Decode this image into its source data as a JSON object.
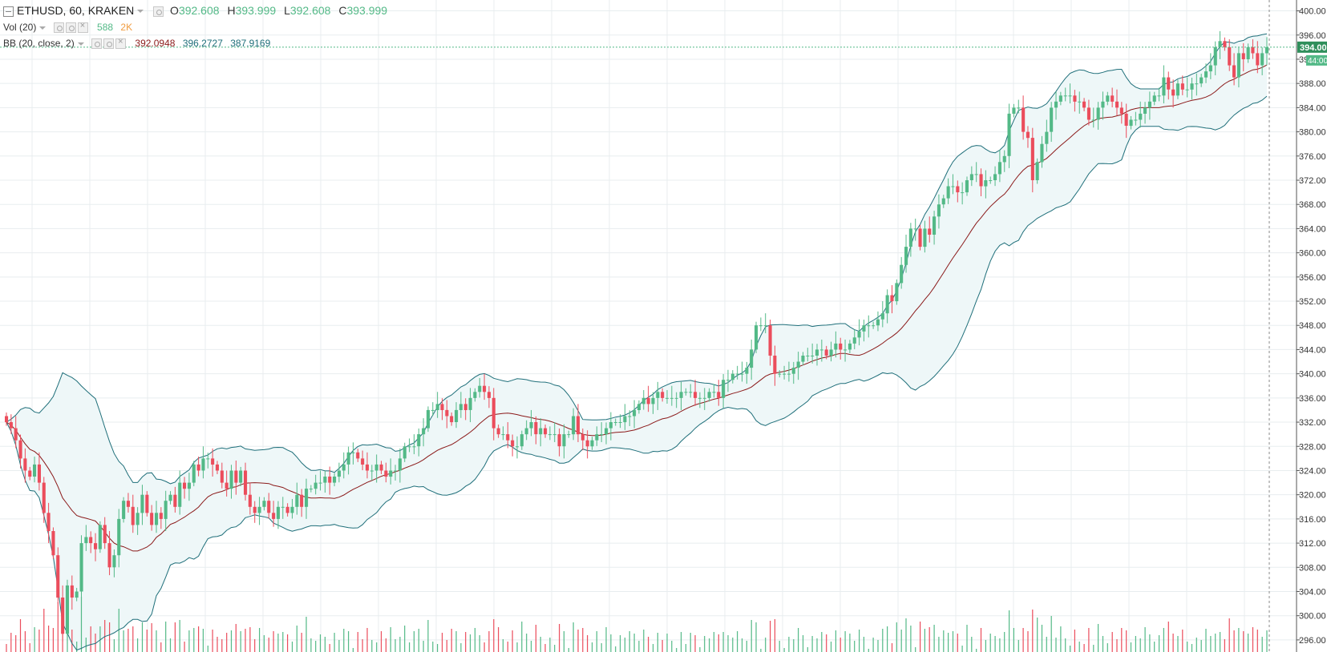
{
  "header": {
    "symbol": "ETHUSD, 60, KRAKEN",
    "open_label": "O",
    "open": "392.608",
    "high_label": "H",
    "high": "393.999",
    "low_label": "L",
    "low": "392.608",
    "close_label": "C",
    "close": "393.999"
  },
  "volume_legend": {
    "label": "Vol (20)",
    "value": "588",
    "ma_value": "2K"
  },
  "bb_legend": {
    "label": "BB (20, close, 2)",
    "basis": "392.0948",
    "upper": "396.2727",
    "lower": "387.9169"
  },
  "price_axis": {
    "last_price_label": "394.00",
    "countdown_label": "44:00"
  },
  "colors": {
    "up": "#53b987",
    "down": "#eb4d5c",
    "bb_band": "#1f6f7a",
    "bb_basis": "#8b1a1a",
    "bb_fill": "#eef7f8",
    "vol_ma": "#f09c40",
    "grid": "#e8edef"
  },
  "chart_data": {
    "type": "candlestick",
    "title": "ETHUSD, 60, KRAKEN",
    "ylim": [
      294,
      401
    ],
    "y_ticks": [
      "296.00",
      "300.00",
      "304.00",
      "308.00",
      "312.00",
      "316.00",
      "320.00",
      "324.00",
      "328.00",
      "332.00",
      "336.00",
      "340.00",
      "344.00",
      "348.00",
      "352.00",
      "356.00",
      "360.00",
      "364.00",
      "368.00",
      "372.00",
      "376.00",
      "380.00",
      "384.00",
      "388.00",
      "392.00",
      "396.00",
      "400.00"
    ],
    "last_price": 394.0,
    "close": [
      332,
      331,
      329,
      326,
      324,
      323,
      325,
      322,
      317,
      314,
      310,
      303,
      297,
      305,
      303,
      304,
      312,
      313,
      312,
      311,
      315,
      312,
      308,
      310,
      316,
      319,
      318,
      315,
      317,
      320,
      317,
      315,
      317,
      316,
      319,
      320,
      318,
      322,
      321,
      322,
      325,
      324,
      326,
      326,
      325,
      324,
      322,
      321,
      324,
      322,
      324,
      320,
      318,
      317,
      318,
      319,
      317,
      316,
      318,
      318,
      317,
      318,
      320,
      318,
      321,
      321,
      322,
      322,
      323,
      322,
      323,
      324,
      325,
      327,
      327,
      326,
      325,
      324,
      324,
      325,
      324,
      323,
      324,
      324,
      326,
      328,
      328,
      328,
      330,
      331,
      334,
      334,
      335,
      334,
      333,
      332,
      334,
      335,
      334,
      336,
      337,
      338,
      337,
      336,
      331,
      330,
      330,
      329,
      328,
      328,
      330,
      331,
      332,
      330,
      331,
      330,
      330,
      330,
      328,
      330,
      330,
      333,
      330,
      329,
      328,
      329,
      330,
      330,
      331,
      332,
      332,
      332,
      333,
      333,
      334,
      335,
      336,
      335,
      336,
      337,
      336,
      336,
      336,
      336,
      337,
      337,
      337,
      336,
      336,
      336,
      337,
      337,
      336,
      339,
      339,
      340,
      340,
      340,
      341,
      344,
      348,
      348,
      348,
      343,
      340,
      340,
      340,
      340,
      341,
      342,
      343,
      343,
      343,
      344,
      344,
      343,
      344,
      345,
      344,
      344,
      345,
      346,
      347,
      348,
      348,
      348,
      349,
      350,
      353,
      352,
      355,
      358,
      361,
      364,
      364,
      361,
      364,
      363,
      366,
      368,
      369,
      371,
      371,
      370,
      370,
      372,
      373,
      373,
      371,
      372,
      372,
      373,
      375,
      376,
      383,
      384,
      384,
      380,
      379,
      372,
      375,
      378,
      380,
      384,
      385,
      386,
      386,
      386,
      385,
      385,
      384,
      382,
      382,
      384,
      385,
      386,
      385,
      384,
      383,
      381,
      382,
      382,
      383,
      384,
      385,
      386,
      386,
      389,
      387,
      386,
      388,
      387,
      387,
      388,
      388,
      389,
      390,
      391,
      394,
      395,
      394,
      391,
      389,
      393,
      392,
      394,
      393,
      391,
      393,
      394
    ]
  }
}
